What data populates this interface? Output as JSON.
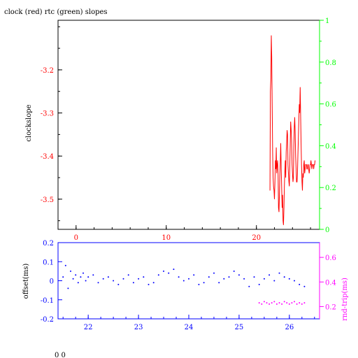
{
  "title": "clock (red) rtc (green) slopes",
  "footer": "0 0",
  "colors": {
    "red": "#ff0000",
    "green": "#00ff00",
    "blue": "#0000ff",
    "magenta": "#ff00ff",
    "black": "#000000"
  },
  "chart_data": [
    {
      "type": "line",
      "title": "clock (red) rtc (green) slopes",
      "ylabel": "clockslope",
      "xlim": [
        -2,
        27
      ],
      "ylim": [
        -3.57,
        -3.085
      ],
      "right_ylim": [
        0,
        1
      ],
      "x_ticks": [
        0,
        10,
        20
      ],
      "x_tick_labels": [
        "0",
        "10",
        "20"
      ],
      "y_ticks": [
        -3.2,
        -3.3,
        -3.4,
        -3.5
      ],
      "y_tick_labels": [
        "-3.2",
        "-3.3",
        "-3.4",
        "-3.5"
      ],
      "right_ticks": [
        0,
        0.2,
        0.4,
        0.6,
        0.8,
        1
      ],
      "right_tick_labels": [
        "0",
        "0.2",
        "0.4",
        "0.6",
        "0.8",
        "1"
      ],
      "series": [
        {
          "color": "#ff0000",
          "x": [
            21.5,
            21.55,
            21.6,
            21.65,
            21.7,
            21.75,
            21.8,
            21.85,
            21.9,
            21.95,
            22.0,
            22.05,
            22.1,
            22.15,
            22.2,
            22.25,
            22.3,
            22.35,
            22.4,
            22.45,
            22.5,
            22.55,
            22.6,
            22.65,
            22.7,
            22.75,
            22.8,
            22.85,
            22.9,
            22.95,
            23.0,
            23.05,
            23.1,
            23.15,
            23.2,
            23.25,
            23.3,
            23.35,
            23.4,
            23.45,
            23.5,
            23.55,
            23.6,
            23.65,
            23.7,
            23.75,
            23.8,
            23.85,
            23.9,
            23.95,
            24.0,
            24.05,
            24.1,
            24.15,
            24.2,
            24.25,
            24.3,
            24.35,
            24.4,
            24.45,
            24.5,
            24.55,
            24.6,
            24.65,
            24.7,
            24.75,
            24.8,
            24.85,
            24.9,
            24.95,
            25.0,
            25.05,
            25.1,
            25.15,
            25.2,
            25.25,
            25.3,
            25.35,
            25.4,
            25.45,
            25.5,
            25.55,
            25.6,
            25.65,
            25.7,
            25.75,
            25.8,
            25.85,
            25.9,
            25.95,
            26.0,
            26.05,
            26.1,
            26.15,
            26.2,
            26.25,
            26.3,
            26.35,
            26.4,
            26.45,
            26.5
          ],
          "values": [
            -3.48,
            -3.25,
            -3.22,
            -3.12,
            -3.17,
            -3.29,
            -3.39,
            -3.45,
            -3.47,
            -3.48,
            -3.5,
            -3.46,
            -3.41,
            -3.43,
            -3.38,
            -3.44,
            -3.42,
            -3.41,
            -3.44,
            -3.52,
            -3.53,
            -3.49,
            -3.44,
            -3.41,
            -3.37,
            -3.43,
            -3.47,
            -3.52,
            -3.49,
            -3.55,
            -3.56,
            -3.52,
            -3.47,
            -3.44,
            -3.41,
            -3.45,
            -3.39,
            -3.37,
            -3.34,
            -3.35,
            -3.42,
            -3.44,
            -3.46,
            -3.47,
            -3.43,
            -3.37,
            -3.32,
            -3.34,
            -3.36,
            -3.42,
            -3.44,
            -3.46,
            -3.45,
            -3.38,
            -3.33,
            -3.31,
            -3.35,
            -3.4,
            -3.43,
            -3.46,
            -3.46,
            -3.44,
            -3.4,
            -3.36,
            -3.32,
            -3.28,
            -3.3,
            -3.24,
            -3.3,
            -3.37,
            -3.42,
            -3.46,
            -3.48,
            -3.44,
            -3.45,
            -3.42,
            -3.41,
            -3.44,
            -3.43,
            -3.42,
            -3.42,
            -3.42,
            -3.43,
            -3.43,
            -3.42,
            -3.42,
            -3.43,
            -3.44,
            -3.43,
            -3.42,
            -3.42,
            -3.41,
            -3.42,
            -3.43,
            -3.42,
            -3.42,
            -3.42,
            -3.43,
            -3.42,
            -3.42,
            -3.41
          ]
        }
      ]
    },
    {
      "type": "scatter",
      "ylabel": "offset(ms)",
      "right_ylabel": "rnd-trip(ms)",
      "xlim": [
        21.4,
        26.6
      ],
      "ylim": [
        -0.2,
        0.2
      ],
      "right_ylim": [
        0.1,
        0.72
      ],
      "x_ticks": [
        22,
        23,
        24,
        25,
        26
      ],
      "x_tick_labels": [
        "22",
        "23",
        "24",
        "25",
        "26"
      ],
      "y_ticks": [
        0.2,
        0.1,
        0,
        -0.1,
        -0.2
      ],
      "y_tick_labels": [
        "0.2",
        "0.1",
        "0",
        "-0.1",
        "-0.2"
      ],
      "right_ticks": [
        0.6,
        0.4,
        0.2
      ],
      "right_tick_labels": [
        "0.6",
        "0.4",
        "0.2"
      ],
      "series": [
        {
          "color": "#0000ff",
          "x": [
            21.5,
            21.55,
            21.6,
            21.65,
            21.7,
            21.75,
            21.8,
            21.85,
            21.9,
            21.95,
            22.0,
            22.1,
            22.2,
            22.3,
            22.4,
            22.5,
            22.6,
            22.7,
            22.8,
            22.9,
            23.0,
            23.1,
            23.2,
            23.3,
            23.4,
            23.5,
            23.6,
            23.7,
            23.8,
            23.9,
            24.0,
            24.1,
            24.2,
            24.3,
            24.4,
            24.5,
            24.6,
            24.7,
            24.8,
            24.9,
            25.0,
            25.1,
            25.2,
            25.3,
            25.4,
            25.5,
            25.6,
            25.7,
            25.8,
            25.9,
            26.0,
            26.1,
            26.2,
            26.3
          ],
          "values": [
            0.02,
            0.08,
            -0.04,
            0.05,
            0.01,
            0.03,
            -0.01,
            0.02,
            0.04,
            0.0,
            0.02,
            0.03,
            -0.01,
            0.01,
            0.02,
            0.0,
            -0.02,
            0.01,
            0.03,
            -0.01,
            0.01,
            0.02,
            -0.02,
            -0.01,
            0.03,
            0.05,
            0.04,
            0.06,
            0.02,
            0.0,
            0.01,
            0.03,
            -0.02,
            -0.01,
            0.02,
            0.04,
            -0.01,
            0.01,
            0.02,
            0.05,
            0.03,
            0.01,
            -0.03,
            0.02,
            -0.02,
            0.01,
            0.03,
            0.0,
            0.04,
            0.02,
            0.01,
            0.0,
            -0.02,
            -0.03
          ]
        },
        {
          "color": "#ff00ff",
          "axis": "right",
          "x": [
            25.4,
            25.45,
            25.5,
            25.55,
            25.6,
            25.65,
            25.7,
            25.75,
            25.8,
            25.85,
            25.9,
            25.95,
            26.0,
            26.05,
            26.1,
            26.15,
            26.2,
            26.25,
            26.3
          ],
          "values": [
            0.23,
            0.22,
            0.24,
            0.23,
            0.22,
            0.23,
            0.24,
            0.22,
            0.23,
            0.22,
            0.24,
            0.23,
            0.22,
            0.23,
            0.24,
            0.22,
            0.23,
            0.22,
            0.23
          ]
        }
      ]
    }
  ]
}
